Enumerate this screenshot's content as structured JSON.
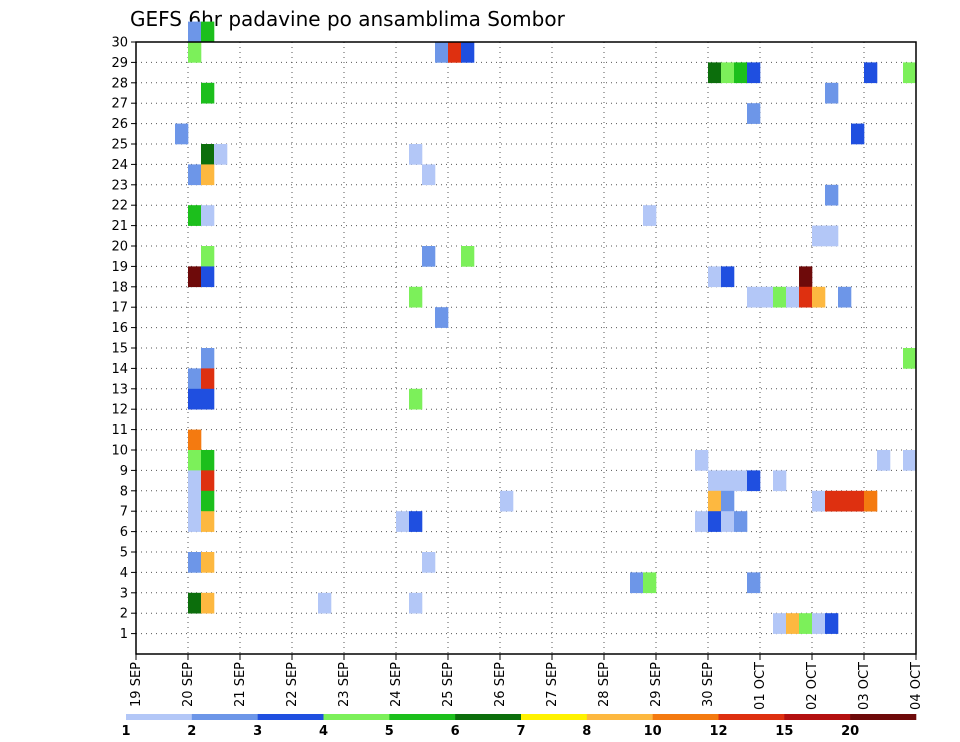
{
  "chart_data": {
    "type": "heatmap",
    "title": "GEFS 6hr padavine po ansamblima Sombor",
    "x_tick_labels": [
      "19 SEP",
      "20 SEP",
      "21 SEP",
      "22 SEP",
      "23 SEP",
      "24 SEP",
      "25 SEP",
      "26 SEP",
      "27 SEP",
      "28 SEP",
      "29 SEP",
      "30 SEP",
      "01 OCT",
      "02 OCT",
      "03 OCT",
      "04 OCT"
    ],
    "y_tick_labels": [
      "1",
      "2",
      "3",
      "4",
      "5",
      "6",
      "7",
      "8",
      "9",
      "10",
      "11",
      "12",
      "13",
      "14",
      "15",
      "16",
      "17",
      "18",
      "19",
      "20",
      "21",
      "22",
      "23",
      "24",
      "25",
      "26",
      "27",
      "28",
      "29",
      "30"
    ],
    "x_range": [
      0,
      60
    ],
    "y_range": [
      0,
      30
    ],
    "step_hours": 6,
    "grid": true,
    "colorbar": {
      "levels": [
        "1",
        "2",
        "3",
        "4",
        "5",
        "6",
        "7",
        "8",
        "10",
        "12",
        "15",
        "20"
      ],
      "colors": [
        "#b3c7f7",
        "#6d96e8",
        "#1f4fe0",
        "#7cf05a",
        "#1cbf1c",
        "#0c6e0c",
        "#fff200",
        "#fdb840",
        "#f47a10",
        "#de3010",
        "#b41010",
        "#6e0a0a"
      ]
    },
    "cells": [
      [
        4,
        30,
        1
      ],
      [
        5,
        30,
        4
      ],
      [
        4,
        29,
        3
      ],
      [
        23,
        29,
        1
      ],
      [
        24,
        29,
        9
      ],
      [
        25,
        29,
        2
      ],
      [
        44,
        28,
        5
      ],
      [
        45,
        28,
        3
      ],
      [
        46,
        28,
        4
      ],
      [
        47,
        28,
        2
      ],
      [
        56,
        28,
        2
      ],
      [
        59,
        28,
        3
      ],
      [
        5,
        27,
        4
      ],
      [
        53,
        27,
        1
      ],
      [
        47,
        26,
        1
      ],
      [
        3,
        25,
        1
      ],
      [
        55,
        25,
        2
      ],
      [
        5,
        24,
        5
      ],
      [
        6,
        24,
        0
      ],
      [
        21,
        24,
        0
      ],
      [
        4,
        23,
        1
      ],
      [
        5,
        23,
        7
      ],
      [
        22,
        23,
        0
      ],
      [
        53,
        22,
        1
      ],
      [
        4,
        21,
        4
      ],
      [
        5,
        21,
        0
      ],
      [
        39,
        21,
        0
      ],
      [
        52,
        20,
        0
      ],
      [
        53,
        20,
        0
      ],
      [
        5,
        19,
        3
      ],
      [
        22,
        19,
        1
      ],
      [
        25,
        19,
        3
      ],
      [
        4,
        18,
        11
      ],
      [
        5,
        18,
        2
      ],
      [
        44,
        18,
        0
      ],
      [
        45,
        18,
        2
      ],
      [
        51,
        18,
        11
      ],
      [
        21,
        17,
        3
      ],
      [
        47,
        17,
        0
      ],
      [
        48,
        17,
        0
      ],
      [
        49,
        17,
        3
      ],
      [
        50,
        17,
        0
      ],
      [
        51,
        17,
        9
      ],
      [
        52,
        17,
        7
      ],
      [
        54,
        17,
        1
      ],
      [
        23,
        16,
        1
      ],
      [
        5,
        14,
        1
      ],
      [
        59,
        14,
        3
      ],
      [
        4,
        13,
        1
      ],
      [
        5,
        13,
        9
      ],
      [
        4,
        12,
        2
      ],
      [
        5,
        12,
        2
      ],
      [
        21,
        12,
        3
      ],
      [
        4,
        10,
        8
      ],
      [
        4,
        9,
        3
      ],
      [
        5,
        9,
        4
      ],
      [
        43,
        9,
        0
      ],
      [
        57,
        9,
        0
      ],
      [
        59,
        9,
        0
      ],
      [
        4,
        8,
        0
      ],
      [
        5,
        8,
        9
      ],
      [
        44,
        8,
        0
      ],
      [
        45,
        8,
        0
      ],
      [
        46,
        8,
        0
      ],
      [
        47,
        8,
        2
      ],
      [
        49,
        8,
        0
      ],
      [
        4,
        7,
        0
      ],
      [
        5,
        7,
        4
      ],
      [
        28,
        7,
        0
      ],
      [
        44,
        7,
        7
      ],
      [
        45,
        7,
        1
      ],
      [
        52,
        7,
        0
      ],
      [
        53,
        7,
        9
      ],
      [
        54,
        7,
        9
      ],
      [
        55,
        7,
        9
      ],
      [
        56,
        7,
        8
      ],
      [
        4,
        6,
        0
      ],
      [
        5,
        6,
        7
      ],
      [
        20,
        6,
        0
      ],
      [
        21,
        6,
        2
      ],
      [
        43,
        6,
        0
      ],
      [
        44,
        6,
        2
      ],
      [
        45,
        6,
        0
      ],
      [
        46,
        6,
        1
      ],
      [
        4,
        4,
        1
      ],
      [
        5,
        4,
        7
      ],
      [
        22,
        4,
        0
      ],
      [
        38,
        3,
        1
      ],
      [
        39,
        3,
        3
      ],
      [
        47,
        3,
        1
      ],
      [
        4,
        2,
        5
      ],
      [
        5,
        2,
        7
      ],
      [
        14,
        2,
        0
      ],
      [
        21,
        2,
        0
      ],
      [
        49,
        1,
        0
      ],
      [
        50,
        1,
        7
      ],
      [
        51,
        1,
        3
      ],
      [
        52,
        1,
        0
      ],
      [
        53,
        1,
        2
      ]
    ]
  }
}
